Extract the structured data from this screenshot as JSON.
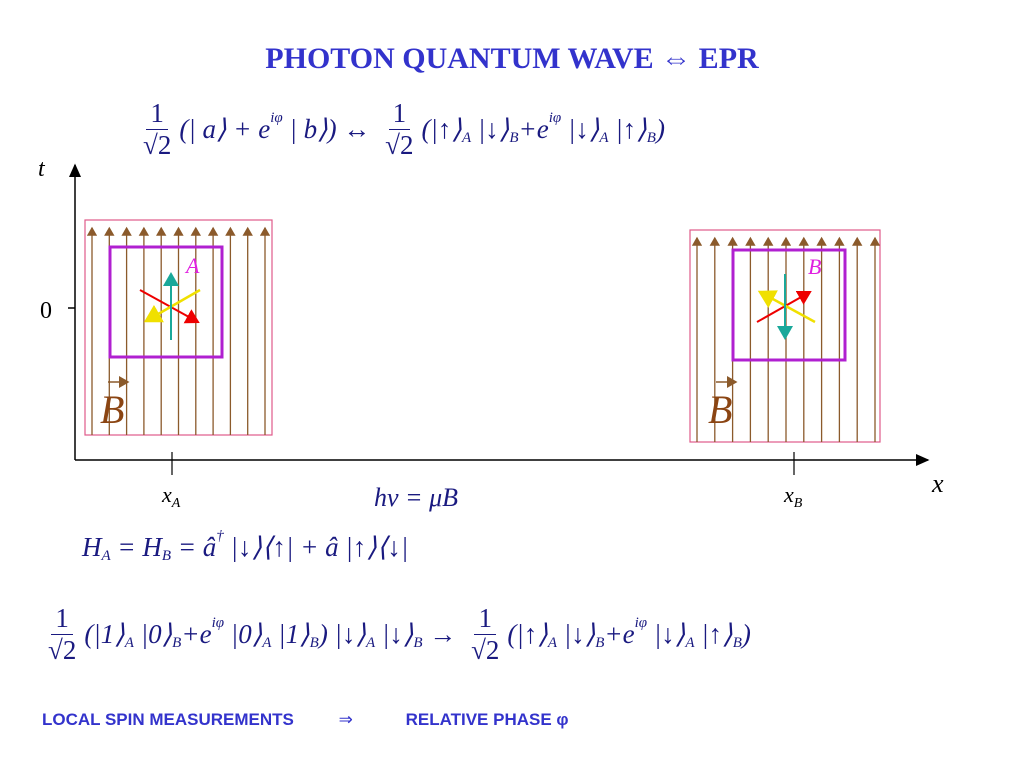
{
  "title": "PHOTON QUANTUM WAVE ⇔ EPR",
  "equation_1": [
    "1",
    "√2",
    "(| a⟩ + e",
    "iφ",
    " | b⟩) ↔ ",
    "1",
    "√2",
    "(|↑⟩",
    "A",
    " |↓⟩",
    "B",
    "+e",
    "iφ",
    " |↓⟩",
    "A",
    " |↑⟩",
    "B",
    ")"
  ],
  "diagram": {
    "t_axis": "t",
    "zero": "0",
    "x_axis": "x",
    "x_a": [
      "x",
      "A"
    ],
    "x_b": [
      "x",
      "B"
    ],
    "resonance": "hν = μB",
    "label_a": "A",
    "label_b": "B",
    "field_a": "B",
    "field_b": "B"
  },
  "hamiltonian": [
    "H",
    "A",
    " = H",
    "B",
    " = â",
    "†",
    " |↓⟩⟨↑| + â |↑⟩⟨↓|"
  ],
  "equation_2": [
    "1",
    "√2",
    "(|1⟩",
    "A",
    " |0⟩",
    "B",
    "+e",
    "iφ",
    " |0⟩",
    "A",
    " |1⟩",
    "B",
    ") |↓⟩",
    "A",
    " |↓⟩",
    "B",
    " → ",
    "1",
    "√2",
    "(|↑⟩",
    "A",
    " |↓⟩",
    "B",
    "+e",
    "iφ",
    " |↓⟩",
    "A",
    " |↑⟩",
    "B",
    ")"
  ],
  "footer": {
    "left": "LOCAL SPIN MEASUREMENTS",
    "arrow": "⇒",
    "right": "RELATIVE PHASE φ"
  }
}
